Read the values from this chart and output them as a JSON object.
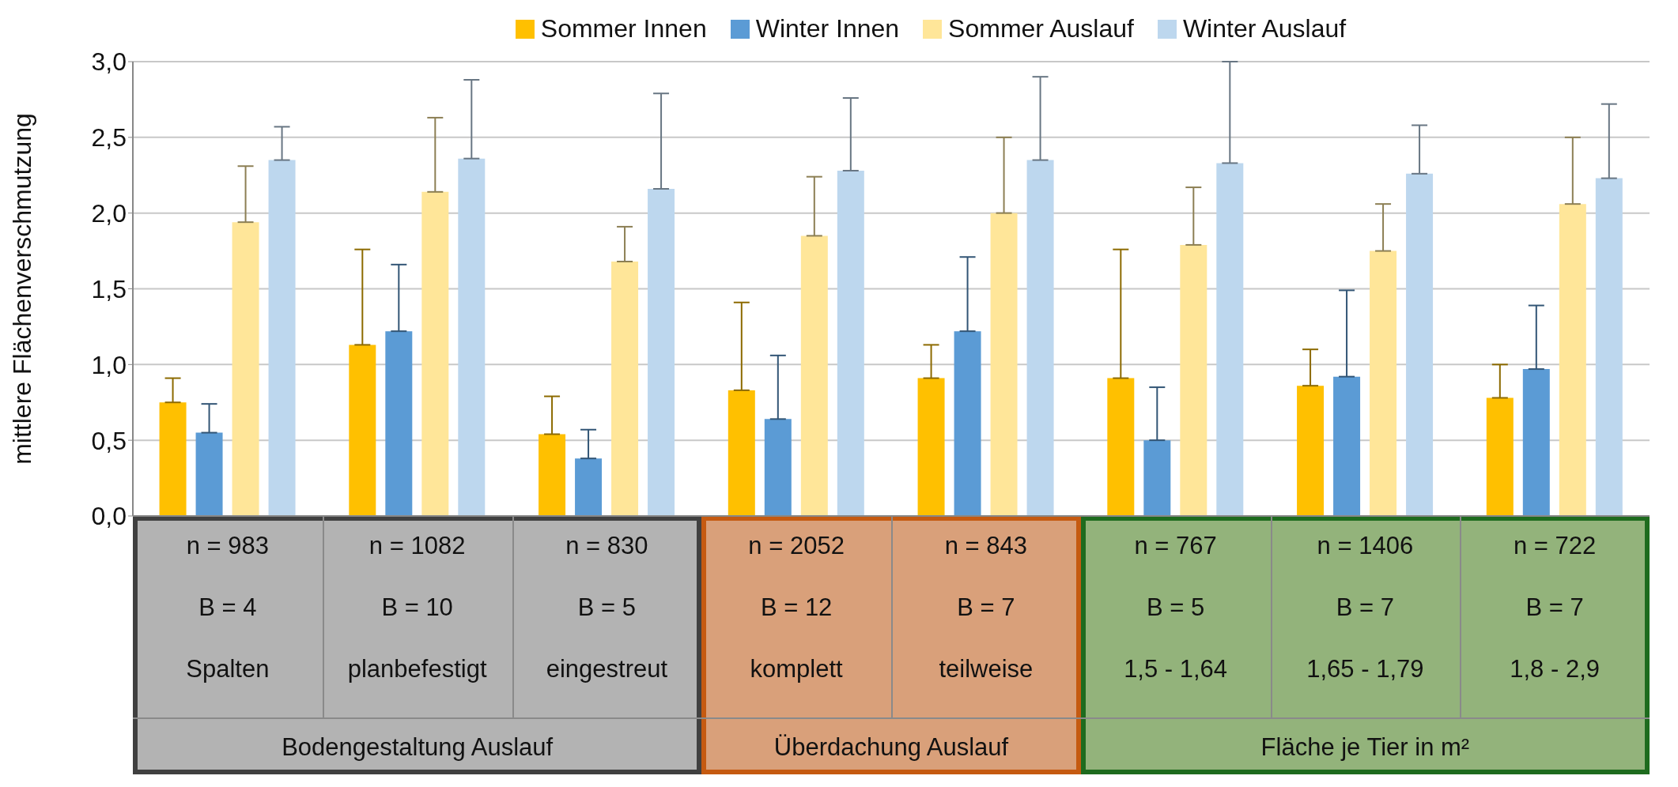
{
  "chart_data": {
    "type": "bar",
    "ylabel": "mittlere  Flächenverschmutzung",
    "categories": [
      "n = 983\nB = 4\nSpalten",
      "n = 1082\nB = 10\nplanbefestigt",
      "n = 830\nB = 5\neingestreut",
      "n = 2052\nB = 12\nkomplett",
      "n = 843\nB = 7\nteilweise",
      "n = 767\nB = 5\n1,5 - 1,64",
      "n = 1406\nB = 7\n1,65 - 1,79",
      "n = 722\nB = 7\n1,8 - 2,9"
    ],
    "series": [
      {
        "name": "Sommer Innen",
        "color": "#ffc000",
        "values": [
          0.75,
          1.13,
          0.54,
          0.83,
          0.91,
          0.91,
          0.86,
          0.78
        ],
        "errors": [
          0.16,
          0.63,
          0.25,
          0.58,
          0.22,
          0.85,
          0.24,
          0.22
        ]
      },
      {
        "name": "Winter Innen",
        "color": "#5b9bd5",
        "values": [
          0.55,
          1.22,
          0.38,
          0.64,
          1.22,
          0.5,
          0.92,
          0.97
        ],
        "errors": [
          0.19,
          0.44,
          0.19,
          0.42,
          0.49,
          0.35,
          0.57,
          0.42
        ]
      },
      {
        "name": "Sommer Auslauf",
        "color": "#ffe699",
        "values": [
          1.94,
          2.14,
          1.68,
          1.85,
          2.0,
          1.79,
          1.75,
          2.06
        ],
        "errors": [
          0.37,
          0.49,
          0.23,
          0.39,
          0.5,
          0.38,
          0.31,
          0.44
        ]
      },
      {
        "name": "Winter Auslauf",
        "color": "#bdd7ee",
        "values": [
          2.35,
          2.36,
          2.16,
          2.28,
          2.35,
          2.33,
          2.26,
          2.23
        ],
        "errors": [
          0.22,
          0.52,
          0.63,
          0.48,
          0.55,
          0.67,
          0.32,
          0.49
        ]
      }
    ],
    "ylim": [
      0,
      3
    ],
    "yticks": [
      {
        "value": 0,
        "label": "0,0"
      },
      {
        "value": 0.5,
        "label": "0,5"
      },
      {
        "value": 1,
        "label": "1,0"
      },
      {
        "value": 1.5,
        "label": "1,5"
      },
      {
        "value": 2,
        "label": "2,0"
      },
      {
        "value": 2.5,
        "label": "2,5"
      },
      {
        "value": 3,
        "label": "3,0"
      }
    ],
    "grid": "y",
    "legend": "top",
    "annotations": [
      "Bodengestaltung Auslauf",
      "Überdachung Auslauf",
      "Fläche je Tier in m²"
    ]
  }
}
